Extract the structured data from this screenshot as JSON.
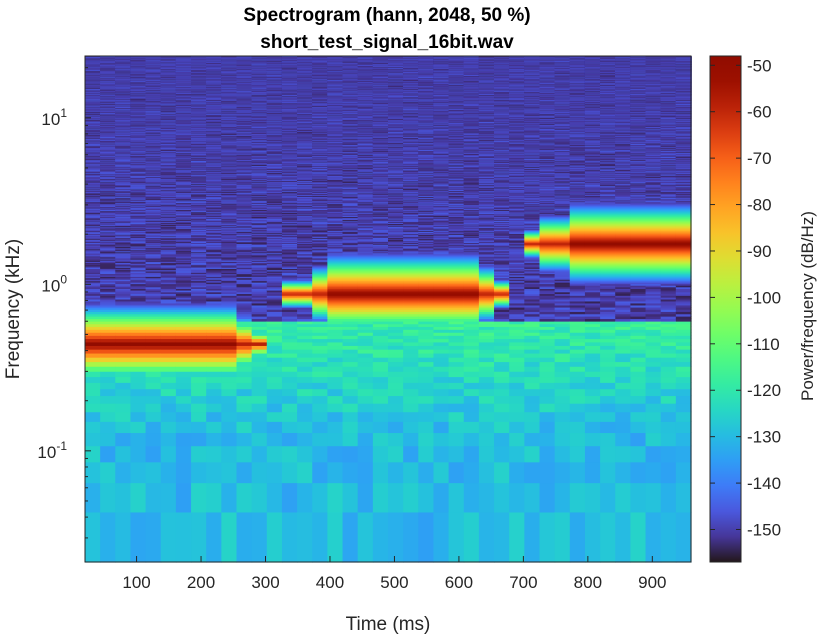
{
  "chart_data": {
    "type": "heatmap",
    "title": "Spectrogram (hann, 2048, 50 %)",
    "subtitle": "short_test_signal_16bit.wav",
    "xlabel": "Time (ms)",
    "ylabel": "Frequency (kHz)",
    "colorbar_label": "Power/frequency (dB/Hz)",
    "colormap": "turbo",
    "xlim": [
      20,
      960
    ],
    "ylim_khz": [
      0.0215,
      23.5
    ],
    "yscale": "log",
    "clim_db": [
      -157,
      -48
    ],
    "x_ticks": [
      "100",
      "200",
      "300",
      "400",
      "500",
      "600",
      "700",
      "800",
      "900"
    ],
    "x_tick_values": [
      100,
      200,
      300,
      400,
      500,
      600,
      700,
      800,
      900
    ],
    "y_ticks": [
      {
        "base": "10",
        "exp": "-1",
        "value": 0.1
      },
      {
        "base": "10",
        "exp": "0",
        "value": 1
      },
      {
        "base": "10",
        "exp": "1",
        "value": 10
      }
    ],
    "colorbar_ticks": [
      "-50",
      "-60",
      "-70",
      "-80",
      "-90",
      "-100",
      "-110",
      "-120",
      "-130",
      "-140",
      "-150"
    ],
    "colorbar_tick_values": [
      -50,
      -60,
      -70,
      -80,
      -90,
      -100,
      -110,
      -120,
      -130,
      -140,
      -150
    ],
    "tones": [
      {
        "t_start_ms": 20,
        "t_end_ms": 250,
        "freq_khz": 0.44,
        "peak_db": -50
      },
      {
        "t_start_ms": 395,
        "t_end_ms": 625,
        "freq_khz": 0.88,
        "peak_db": -50
      },
      {
        "t_start_ms": 765,
        "t_end_ms": 960,
        "freq_khz": 1.76,
        "peak_db": -50
      }
    ],
    "noise_floor_db": -150,
    "low_freq_floor_db": -130,
    "grid": false
  }
}
